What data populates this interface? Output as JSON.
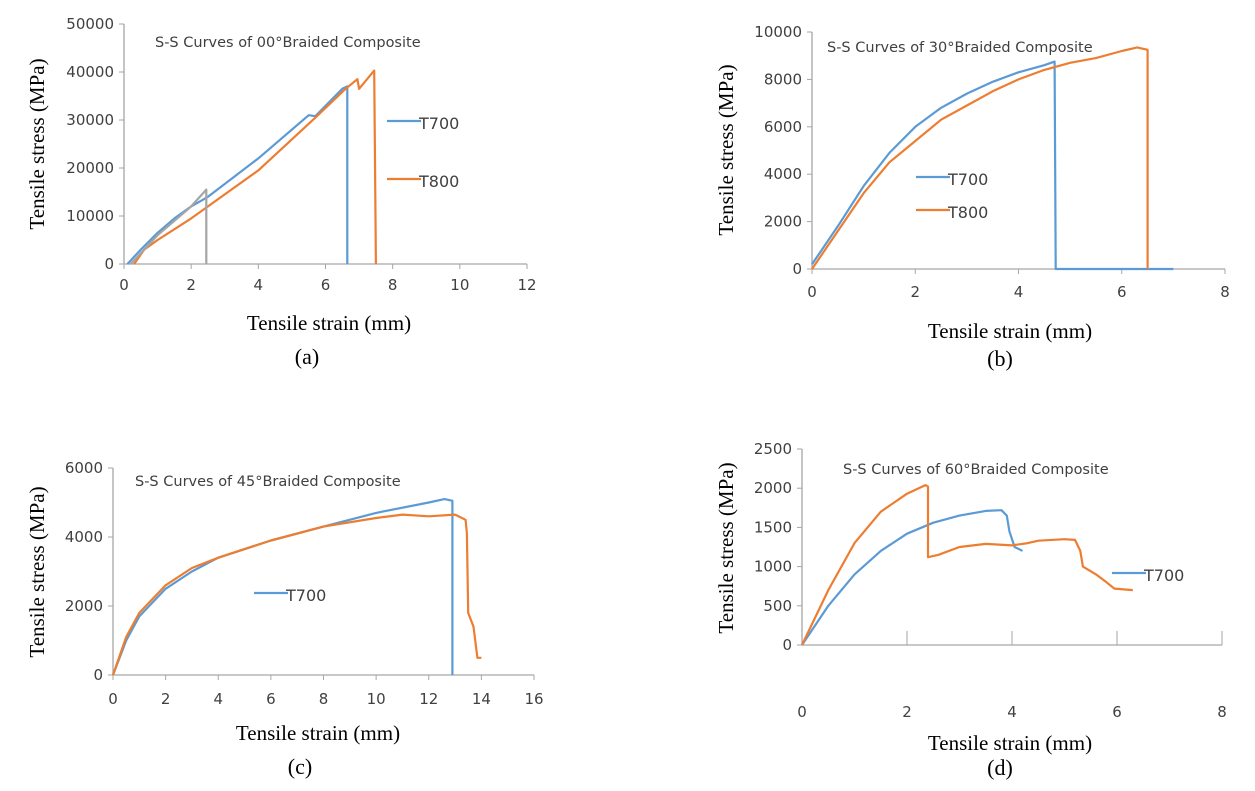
{
  "chart_data": [
    {
      "panel": "(a)",
      "type": "line",
      "title": "S-S Curves of 00°Braided Composite",
      "xlabel": "Tensile strain (mm)",
      "ylabel": "Tensile stress (MPa)",
      "xlim": [
        0,
        12
      ],
      "ylim": [
        0,
        50000
      ],
      "xticks": [
        "0",
        "2",
        "4",
        "6",
        "8",
        "10",
        "12"
      ],
      "yticks": [
        "0",
        "10000",
        "20000",
        "30000",
        "40000",
        "50000"
      ],
      "grid": false,
      "legend": "right",
      "series": [
        {
          "name": "T700",
          "color": "#5b9bd5",
          "in_legend": true,
          "x": [
            0.1,
            0.5,
            1,
            1.5,
            2,
            2.5,
            4,
            5.5,
            5.7,
            6.5,
            6.65,
            6.65
          ],
          "y": [
            0,
            3000,
            6500,
            9500,
            12000,
            14000,
            22000,
            31000,
            30800,
            36500,
            37000,
            0
          ]
        },
        {
          "name": "T800",
          "color": "#ed7d31",
          "in_legend": true,
          "x": [
            0.3,
            0.6,
            1,
            2,
            2.5,
            4,
            5.7,
            6.6,
            6.95,
            7,
            7.45,
            7.5
          ],
          "y": [
            0,
            3000,
            5000,
            9500,
            12000,
            19500,
            30500,
            36500,
            38500,
            36500,
            40300,
            0
          ]
        },
        {
          "color": "#a5a5a5",
          "in_legend": false,
          "x": [
            0.2,
            1,
            2,
            2.45,
            2.45
          ],
          "y": [
            0,
            6000,
            12000,
            15500,
            0
          ]
        }
      ]
    },
    {
      "panel": "(b)",
      "type": "line",
      "title": "S-S Curves of 30°Braided Composite",
      "xlabel": "Tensile strain (mm)",
      "ylabel": "Tensile stress (MPa)",
      "xlim": [
        0,
        8
      ],
      "ylim": [
        0,
        10000
      ],
      "xticks": [
        "0",
        "2",
        "4",
        "6",
        "8"
      ],
      "yticks": [
        "0",
        "2000",
        "4000",
        "6000",
        "8000",
        "10000"
      ],
      "grid": false,
      "legend": "center",
      "series": [
        {
          "name": "T700",
          "color": "#5b9bd5",
          "in_legend": true,
          "x": [
            0,
            0.5,
            1,
            1.5,
            2,
            2.5,
            3,
            3.5,
            4,
            4.5,
            4.7,
            4.72,
            7
          ],
          "y": [
            200,
            1800,
            3500,
            4900,
            6000,
            6800,
            7400,
            7900,
            8300,
            8600,
            8750,
            0,
            0
          ]
        },
        {
          "name": "T800",
          "color": "#ed7d31",
          "in_legend": true,
          "x": [
            0,
            0.5,
            1,
            1.5,
            2,
            2.5,
            3,
            3.5,
            4,
            4.5,
            5,
            5.5,
            6,
            6.3,
            6.5,
            6.5
          ],
          "y": [
            0,
            1600,
            3200,
            4500,
            5400,
            6300,
            6900,
            7500,
            8000,
            8400,
            8700,
            8900,
            9200,
            9350,
            9250,
            0
          ]
        }
      ]
    },
    {
      "panel": "(c)",
      "type": "line",
      "title": "S-S Curves of 45°Braided Composite",
      "xlabel": "Tensile strain (mm)",
      "ylabel": "Tensile stress (MPa)",
      "xlim": [
        0,
        16
      ],
      "ylim": [
        0,
        6000
      ],
      "xticks": [
        "0",
        "2",
        "4",
        "6",
        "8",
        "10",
        "12",
        "14",
        "16"
      ],
      "yticks": [
        "0",
        "2000",
        "4000",
        "6000"
      ],
      "grid": false,
      "legend": "center",
      "series": [
        {
          "name": "T700",
          "color": "#5b9bd5",
          "in_legend": true,
          "x": [
            0,
            0.5,
            1,
            2,
            3,
            4,
            6,
            8,
            10,
            12,
            12.6,
            12.9,
            12.9
          ],
          "y": [
            0,
            1000,
            1700,
            2500,
            3000,
            3400,
            3900,
            4300,
            4700,
            5000,
            5100,
            5050,
            0
          ]
        },
        {
          "color": "#ed7d31",
          "in_legend": false,
          "x": [
            0,
            0.5,
            1,
            2,
            3,
            4,
            6,
            8,
            10,
            11,
            12,
            13,
            13.4,
            13.45,
            13.5,
            13.7,
            13.85,
            14
          ],
          "y": [
            0,
            1100,
            1800,
            2600,
            3100,
            3400,
            3900,
            4300,
            4550,
            4650,
            4600,
            4650,
            4500,
            4100,
            1800,
            1400,
            500,
            500
          ]
        }
      ]
    },
    {
      "panel": "(d)",
      "type": "line",
      "title": "S-S Curves of 60°Braided Composite",
      "xlabel": "Tensile strain (mm)",
      "ylabel": "Tensile stress (MPa)",
      "xlim": [
        0,
        8
      ],
      "ylim": [
        0,
        2500
      ],
      "xticks": [
        "0",
        "2",
        "4",
        "6",
        "8"
      ],
      "yticks": [
        "0",
        "500",
        "1000",
        "1500",
        "2000",
        "2500"
      ],
      "grid": false,
      "legend": "right",
      "series": [
        {
          "name": "T700",
          "color": "#5b9bd5",
          "in_legend": true,
          "x": [
            0,
            0.5,
            1,
            1.5,
            2,
            2.5,
            3,
            3.5,
            3.8,
            3.9,
            3.95,
            4.05,
            4.2
          ],
          "y": [
            0,
            500,
            900,
            1200,
            1420,
            1560,
            1650,
            1710,
            1720,
            1650,
            1450,
            1250,
            1200
          ]
        },
        {
          "color": "#ed7d31",
          "in_legend": false,
          "x": [
            0,
            0.5,
            1,
            1.5,
            2,
            2.35,
            2.4,
            2.4,
            2.6,
            3,
            3.5,
            4,
            4.3,
            4.5,
            5,
            5.2,
            5.3,
            5.35,
            5.6,
            5.8,
            5.95,
            6.3
          ],
          "y": [
            0,
            700,
            1300,
            1700,
            1930,
            2040,
            2020,
            1120,
            1150,
            1250,
            1290,
            1270,
            1300,
            1330,
            1350,
            1340,
            1200,
            1000,
            900,
            800,
            720,
            700
          ]
        }
      ]
    }
  ]
}
